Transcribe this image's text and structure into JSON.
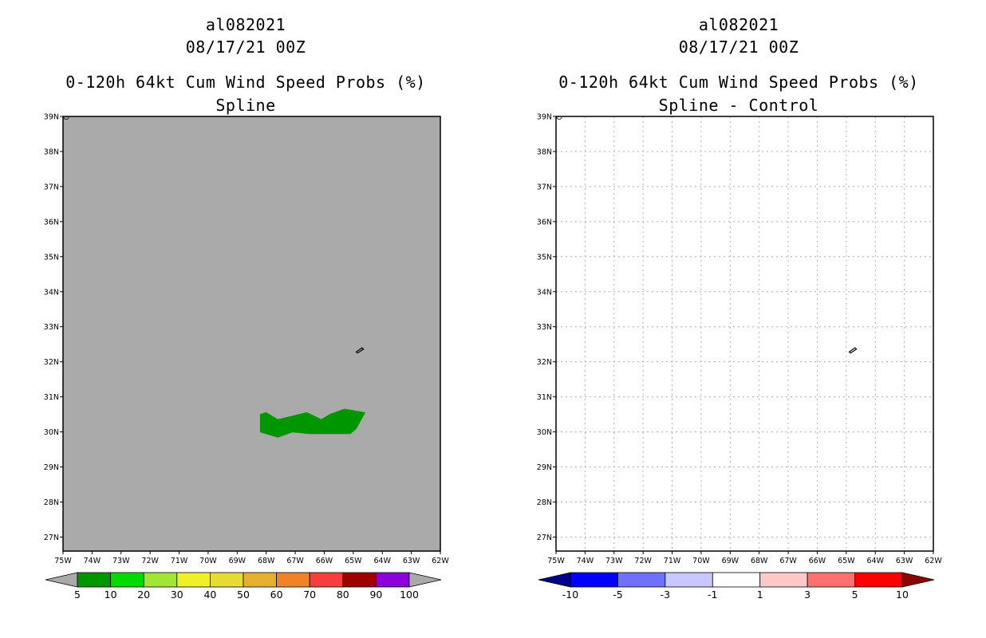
{
  "left": {
    "title_line1": "al082021",
    "title_line2": "08/17/21 00Z",
    "title_line3": "0-120h 64kt Cum Wind Speed Probs (%)",
    "title_line4": "Spline",
    "background_color": "#aaaaaa",
    "colorbar": {
      "labels": [
        "5",
        "10",
        "20",
        "30",
        "40",
        "50",
        "60",
        "70",
        "80",
        "90",
        "100"
      ],
      "colors": [
        "#009600",
        "#00dc00",
        "#a0e632",
        "#f0f028",
        "#e6dc32",
        "#e6af2d",
        "#f08228",
        "#fa3c3c",
        "#a00000",
        "#8c00dc"
      ],
      "end_left_color": "#aaaaaa",
      "end_right_color": "#aaaaaa"
    }
  },
  "right": {
    "title_line1": "al082021",
    "title_line2": "08/17/21 00Z",
    "title_line3": "0-120h 64kt Cum Wind Speed Probs (%)",
    "title_line4": "Spline - Control",
    "background_color": "#ffffff",
    "colorbar": {
      "labels": [
        "-10",
        "-5",
        "-3",
        "-1",
        "1",
        "3",
        "5",
        "10"
      ],
      "colors": [
        "#0000ff",
        "#7070ff",
        "#c8c8ff",
        "#ffffff",
        "#ffc8c8",
        "#ff7070",
        "#ff0000"
      ],
      "end_left_color": "#00008c",
      "end_right_color": "#8c0000"
    }
  },
  "chart_data": [
    {
      "type": "heatmap",
      "title": "0-120h 64kt Cum Wind Speed Probs (%) Spline",
      "x_range": [
        -75,
        -62
      ],
      "y_range": [
        26.6,
        39
      ],
      "xticks": [
        -75,
        -74,
        -73,
        -72,
        -71,
        -70,
        -69,
        -68,
        -67,
        -66,
        -65,
        -64,
        -63,
        -62
      ],
      "yticks": [
        27,
        28,
        29,
        30,
        31,
        32,
        33,
        34,
        35,
        36,
        37,
        38,
        39
      ],
      "xtick_labels": [
        "75W",
        "74W",
        "73W",
        "72W",
        "71W",
        "70W",
        "69W",
        "68W",
        "67W",
        "66W",
        "65W",
        "64W",
        "63W",
        "62W"
      ],
      "ytick_labels": [
        "27N",
        "28N",
        "29N",
        "30N",
        "31N",
        "32N",
        "33N",
        "34N",
        "35N",
        "36N",
        "37N",
        "38N",
        "39N"
      ],
      "grid": false,
      "probability_region": {
        "range": "5-10%",
        "color": "#009600",
        "lonlat": [
          [
            -68.2,
            30.5
          ],
          [
            -68.2,
            30.0
          ],
          [
            -67.6,
            29.85
          ],
          [
            -67.1,
            30.0
          ],
          [
            -66.5,
            29.95
          ],
          [
            -65.1,
            29.95
          ],
          [
            -64.9,
            30.1
          ],
          [
            -64.6,
            30.55
          ],
          [
            -65.3,
            30.65
          ],
          [
            -65.8,
            30.5
          ],
          [
            -66.1,
            30.35
          ],
          [
            -66.6,
            30.55
          ],
          [
            -67.1,
            30.45
          ],
          [
            -67.6,
            30.35
          ],
          [
            -68.0,
            30.55
          ]
        ]
      },
      "land": {
        "bermuda": [
          [
            -64.9,
            32.28
          ],
          [
            -64.7,
            32.4
          ],
          [
            -64.65,
            32.36
          ],
          [
            -64.85,
            32.25
          ]
        ]
      }
    },
    {
      "type": "heatmap",
      "title": "0-120h 64kt Cum Wind Speed Probs (%) Spline - Control",
      "x_range": [
        -75,
        -62
      ],
      "y_range": [
        26.6,
        39
      ],
      "xticks": [
        -75,
        -74,
        -73,
        -72,
        -71,
        -70,
        -69,
        -68,
        -67,
        -66,
        -65,
        -64,
        -63,
        -62
      ],
      "yticks": [
        27,
        28,
        29,
        30,
        31,
        32,
        33,
        34,
        35,
        36,
        37,
        38,
        39
      ],
      "xtick_labels": [
        "75W",
        "74W",
        "73W",
        "72W",
        "71W",
        "70W",
        "69W",
        "68W",
        "67W",
        "66W",
        "65W",
        "64W",
        "63W",
        "62W"
      ],
      "ytick_labels": [
        "27N",
        "28N",
        "29N",
        "30N",
        "31N",
        "32N",
        "33N",
        "34N",
        "35N",
        "36N",
        "37N",
        "38N",
        "39N"
      ],
      "grid": true,
      "difference_field": "all between -1 and 1",
      "land": {
        "bermuda": [
          [
            -64.9,
            32.28
          ],
          [
            -64.7,
            32.4
          ],
          [
            -64.65,
            32.36
          ],
          [
            -64.85,
            32.25
          ]
        ]
      }
    }
  ]
}
